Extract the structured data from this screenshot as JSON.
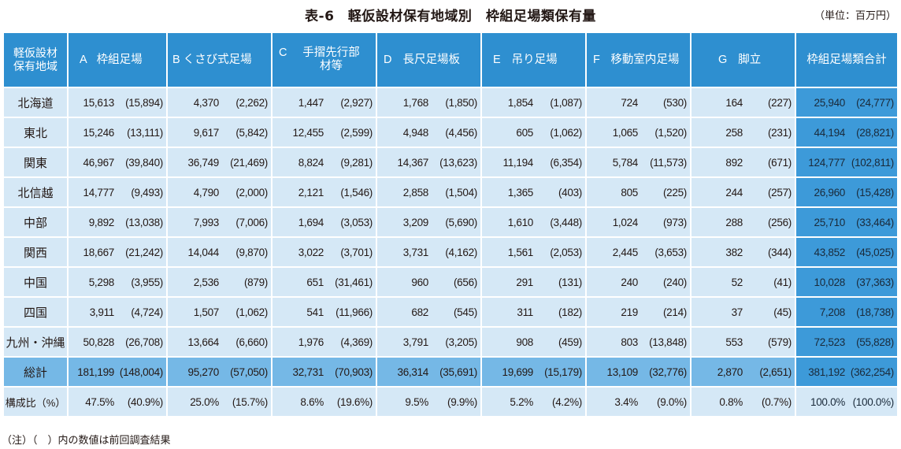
{
  "title": "表-6　軽仮設材保有地域別　枠組足場類保有量",
  "unit": "（単位：百万円）",
  "headers": {
    "region": [
      "軽仮設材",
      "保有地域"
    ],
    "cols": [
      {
        "letter": "A",
        "name": "枠組足場"
      },
      {
        "letter": "B",
        "name": "くさび式足場"
      },
      {
        "letter": "C",
        "name": "手摺先行部材等"
      },
      {
        "letter": "D",
        "name": "長尺足場板"
      },
      {
        "letter": "E",
        "name": "吊り足場"
      },
      {
        "letter": "F",
        "name": "移動室内足場"
      },
      {
        "letter": "G",
        "name": "脚立"
      }
    ],
    "total": "枠組足場類合計"
  },
  "rows": [
    {
      "region": "北海道",
      "cells": [
        [
          "15,613",
          "(15,894)"
        ],
        [
          "4,370",
          "(2,262)"
        ],
        [
          "1,447",
          "(2,927)"
        ],
        [
          "1,768",
          "(1,850)"
        ],
        [
          "1,854",
          "(1,087)"
        ],
        [
          "724",
          "(530)"
        ],
        [
          "164",
          "(227)"
        ],
        [
          "25,940",
          "(24,777)"
        ]
      ]
    },
    {
      "region": "東北",
      "cells": [
        [
          "15,246",
          "(13,111)"
        ],
        [
          "9,617",
          "(5,842)"
        ],
        [
          "12,455",
          "(2,599)"
        ],
        [
          "4,948",
          "(4,456)"
        ],
        [
          "605",
          "(1,062)"
        ],
        [
          "1,065",
          "(1,520)"
        ],
        [
          "258",
          "(231)"
        ],
        [
          "44,194",
          "(28,821)"
        ]
      ]
    },
    {
      "region": "関東",
      "cells": [
        [
          "46,967",
          "(39,840)"
        ],
        [
          "36,749",
          "(21,469)"
        ],
        [
          "8,824",
          "(9,281)"
        ],
        [
          "14,367",
          "(13,623)"
        ],
        [
          "11,194",
          "(6,354)"
        ],
        [
          "5,784",
          "(11,573)"
        ],
        [
          "892",
          "(671)"
        ],
        [
          "124,777",
          "(102,811)"
        ]
      ]
    },
    {
      "region": "北信越",
      "cells": [
        [
          "14,777",
          "(9,493)"
        ],
        [
          "4,790",
          "(2,000)"
        ],
        [
          "2,121",
          "(1,546)"
        ],
        [
          "2,858",
          "(1,504)"
        ],
        [
          "1,365",
          "(403)"
        ],
        [
          "805",
          "(225)"
        ],
        [
          "244",
          "(257)"
        ],
        [
          "26,960",
          "(15,428)"
        ]
      ]
    },
    {
      "region": "中部",
      "cells": [
        [
          "9,892",
          "(13,038)"
        ],
        [
          "7,993",
          "(7,006)"
        ],
        [
          "1,694",
          "(3,053)"
        ],
        [
          "3,209",
          "(5,690)"
        ],
        [
          "1,610",
          "(3,448)"
        ],
        [
          "1,024",
          "(973)"
        ],
        [
          "288",
          "(256)"
        ],
        [
          "25,710",
          "(33,464)"
        ]
      ]
    },
    {
      "region": "関西",
      "cells": [
        [
          "18,667",
          "(21,242)"
        ],
        [
          "14,044",
          "(9,870)"
        ],
        [
          "3,022",
          "(3,701)"
        ],
        [
          "3,731",
          "(4,162)"
        ],
        [
          "1,561",
          "(2,053)"
        ],
        [
          "2,445",
          "(3,653)"
        ],
        [
          "382",
          "(344)"
        ],
        [
          "43,852",
          "(45,025)"
        ]
      ]
    },
    {
      "region": "中国",
      "cells": [
        [
          "5,298",
          "(3,955)"
        ],
        [
          "2,536",
          "(879)"
        ],
        [
          "651",
          "(31,461)"
        ],
        [
          "960",
          "(656)"
        ],
        [
          "291",
          "(131)"
        ],
        [
          "240",
          "(240)"
        ],
        [
          "52",
          "(41)"
        ],
        [
          "10,028",
          "(37,363)"
        ]
      ]
    },
    {
      "region": "四国",
      "cells": [
        [
          "3,911",
          "(4,724)"
        ],
        [
          "1,507",
          "(1,062)"
        ],
        [
          "541",
          "(11,966)"
        ],
        [
          "682",
          "(545)"
        ],
        [
          "311",
          "(182)"
        ],
        [
          "219",
          "(214)"
        ],
        [
          "37",
          "(45)"
        ],
        [
          "7,208",
          "(18,738)"
        ]
      ]
    },
    {
      "region": "九州・沖縄",
      "cells": [
        [
          "50,828",
          "(26,708)"
        ],
        [
          "13,664",
          "(6,660)"
        ],
        [
          "1,976",
          "(4,369)"
        ],
        [
          "3,791",
          "(3,205)"
        ],
        [
          "908",
          "(459)"
        ],
        [
          "803",
          "(13,848)"
        ],
        [
          "553",
          "(579)"
        ],
        [
          "72,523",
          "(55,828)"
        ]
      ]
    }
  ],
  "sum": {
    "region": "総計",
    "cells": [
      [
        "181,199",
        "(148,004)"
      ],
      [
        "95,270",
        "(57,050)"
      ],
      [
        "32,731",
        "(70,903)"
      ],
      [
        "36,314",
        "(35,691)"
      ],
      [
        "19,699",
        "(15,179)"
      ],
      [
        "13,109",
        "(32,776)"
      ],
      [
        "2,870",
        "(2,651)"
      ],
      [
        "381,192",
        "(362,254)"
      ]
    ]
  },
  "ratio": {
    "region": "構成比（%）",
    "cells": [
      [
        "47.5%",
        "(40.9%)"
      ],
      [
        "25.0%",
        "(15.7%)"
      ],
      [
        "8.6%",
        "(19.6%)"
      ],
      [
        "9.5%",
        "(9.9%)"
      ],
      [
        "5.2%",
        "(4.2%)"
      ],
      [
        "3.4%",
        "(9.0%)"
      ],
      [
        "0.8%",
        "(0.7%)"
      ],
      [
        "100.0%",
        "(100.0%)"
      ]
    ]
  },
  "note": "（注）（　）内の数値は前回調査結果",
  "colors": {
    "header": "#2e8fd0",
    "cell": "#d5e8f6",
    "sum_row": "#75b8e6",
    "total_col": "#3d9ad9"
  }
}
